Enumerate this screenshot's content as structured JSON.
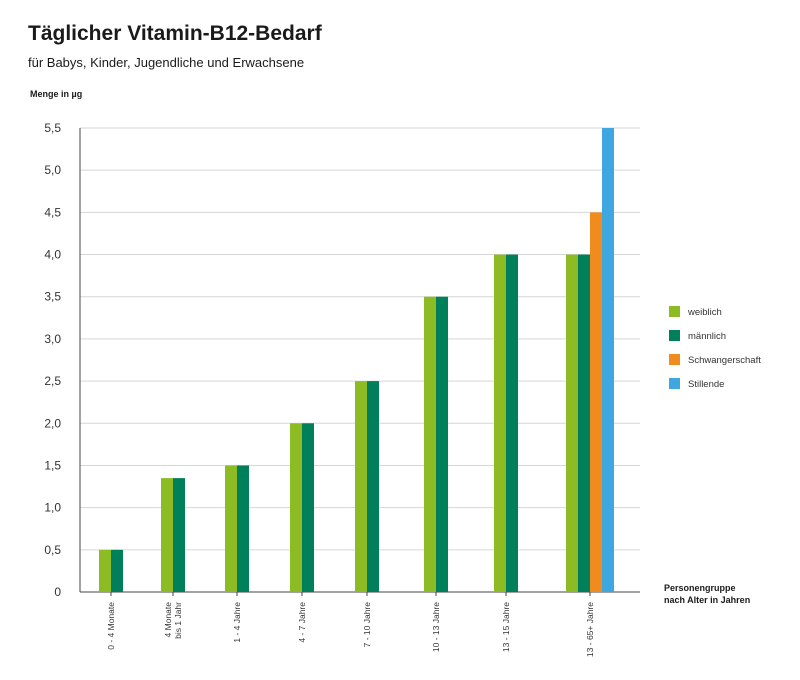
{
  "chart_data": {
    "type": "bar",
    "title": "Täglicher Vitamin-B12-Bedarf",
    "subtitle": "für Babys, Kinder, Jugendliche und Erwachsene",
    "ylabel": "Menge in µg",
    "xlabel": [
      "Personengruppe",
      "nach Alter in Jahren"
    ],
    "ylim": [
      0,
      5.5
    ],
    "yticks": [
      0,
      0.5,
      1.0,
      1.5,
      2.0,
      2.5,
      3.0,
      3.5,
      4.0,
      4.5,
      5.0,
      5.5
    ],
    "ytick_labels": [
      "0",
      "0,5",
      "1,0",
      "1,5",
      "2,0",
      "2,5",
      "3,0",
      "3,5",
      "4,0",
      "4,5",
      "5,0",
      "5,5"
    ],
    "grid": true,
    "legend_position": "right",
    "categories": [
      [
        "0 - 4 Monate"
      ],
      [
        "4 Monate",
        "bis 1 Jahr"
      ],
      [
        "1 - 4 Jahre"
      ],
      [
        "4 - 7 Jahre"
      ],
      [
        "7 - 10 Jahre"
      ],
      [
        "10 - 13 Jahre"
      ],
      [
        "13 - 15 Jahre"
      ],
      [
        "13 - 65+ Jahre"
      ]
    ],
    "series": [
      {
        "name": "weiblich",
        "color": "#8dbb24",
        "values": [
          0.5,
          1.35,
          1.5,
          2.0,
          2.5,
          3.5,
          4.0,
          4.0
        ]
      },
      {
        "name": "männlich",
        "color": "#00805a",
        "values": [
          0.5,
          1.35,
          1.5,
          2.0,
          2.5,
          3.5,
          4.0,
          4.0
        ]
      },
      {
        "name": "Schwangerschaft",
        "color": "#f08c1e",
        "values": [
          null,
          null,
          null,
          null,
          null,
          null,
          null,
          4.5
        ]
      },
      {
        "name": "Stillende",
        "color": "#3fa7df",
        "values": [
          null,
          null,
          null,
          null,
          null,
          null,
          null,
          5.5
        ]
      }
    ]
  }
}
